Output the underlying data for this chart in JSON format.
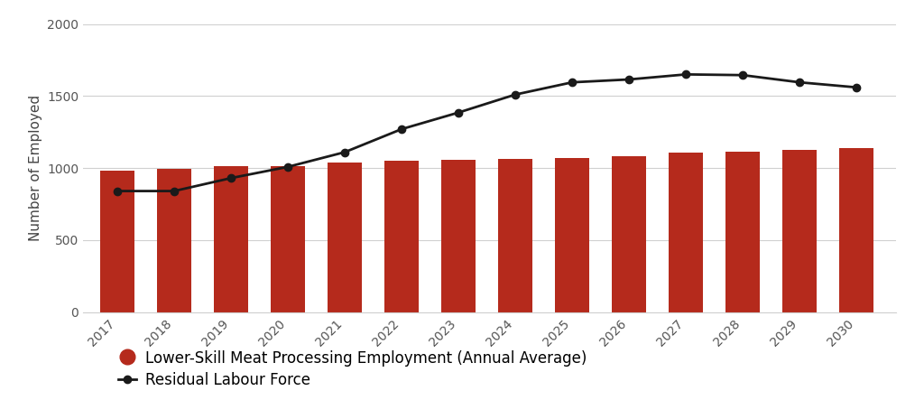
{
  "years": [
    2017,
    2018,
    2019,
    2020,
    2021,
    2022,
    2023,
    2024,
    2025,
    2026,
    2027,
    2028,
    2029,
    2030
  ],
  "bar_values": [
    980,
    995,
    1010,
    1010,
    1040,
    1050,
    1055,
    1060,
    1070,
    1085,
    1105,
    1115,
    1125,
    1140
  ],
  "line_values": [
    840,
    840,
    930,
    1008,
    1110,
    1270,
    1385,
    1510,
    1595,
    1615,
    1650,
    1645,
    1595,
    1560
  ],
  "bar_color": "#b52a1c",
  "line_color": "#1a1a1a",
  "ylabel": "Number of Employed",
  "ylim": [
    0,
    2000
  ],
  "yticks": [
    0,
    500,
    1000,
    1500,
    2000
  ],
  "bar_legend_label": "Lower-Skill Meat Processing Employment (Annual Average)",
  "line_legend_label": "Residual Labour Force",
  "background_color": "#ffffff",
  "grid_color": "#d0d0d0",
  "label_fontsize": 11,
  "tick_fontsize": 10,
  "legend_fontsize": 12
}
